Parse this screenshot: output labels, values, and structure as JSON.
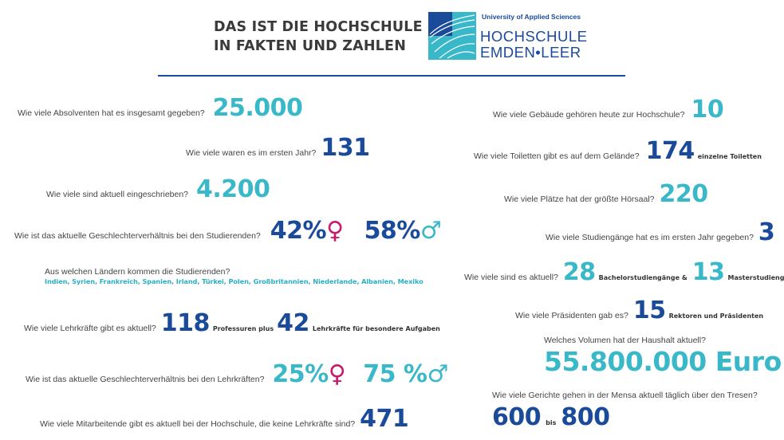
{
  "header": {
    "title_line1": "DAS IST DIE HOCHSCHULE",
    "title_line2": "IN FAKTEN UND ZAHLEN",
    "logo_university": "University of Applied Sciences",
    "logo_line1": "HOCHSCHULE",
    "logo_line2": "EMDEN•LEER"
  },
  "left": {
    "absolventen": {
      "question": "Wie viele Absolventen hat es insgesamt gegeben?",
      "value": "25.000"
    },
    "erstes_jahr": {
      "question": "Wie viele waren es im ersten Jahr?",
      "value": "131"
    },
    "eingeschrieben": {
      "question": "Wie viele sind aktuell eingeschrieben?",
      "value": "4.200"
    },
    "geschlecht_studierende": {
      "question": "Wie ist das aktuelle Geschlechterverhältnis bei den Studierenden?",
      "female": "42%",
      "male": "58%"
    },
    "laender": {
      "question": "Aus welchen Ländern kommen die Studierenden?",
      "list": "Indien, Syrien, Frankreich, Spanien, Irland, Türkei, Polen, Großbritannien, Niederlande, Albanien, Mexiko"
    },
    "lehrkraefte": {
      "question": "Wie viele Lehrkräfte gibt es aktuell?",
      "value1": "118",
      "text1": "Professuren plus",
      "value2": "42",
      "text2": "Lehrkräfte für besondere Aufgaben"
    },
    "geschlecht_lehrkraefte": {
      "question": "Wie ist das aktuelle Geschlechterverhältnis bei den Lehrkräften?",
      "female": "25%",
      "male": "75 %"
    },
    "mitarbeitende": {
      "question": "Wie viele Mitarbeitende gibt es aktuell bei der Hochschule, die keine Lehrkräfte sind?",
      "value": "471"
    }
  },
  "right": {
    "gebaeude": {
      "question": "Wie viele Gebäude gehören heute zur Hochschule?",
      "value": "10"
    },
    "toiletten": {
      "question": "Wie viele Toiletten gibt es auf dem Gelände?",
      "value": "174",
      "text": "einzelne Toiletten"
    },
    "hoersaal": {
      "question": "Wie viele Plätze hat der größte Hörsaal?",
      "value": "220"
    },
    "studiengaenge_erstes_jahr": {
      "question": "Wie viele Studiengänge hat es im ersten Jahr gegeben?",
      "value": "3"
    },
    "studiengaenge_aktuell": {
      "question": "Wie viele sind es aktuell?",
      "value1": "28",
      "text1": "Bachelorstudiengänge &",
      "value2": "13",
      "text2": "Masterstudiengänge"
    },
    "praesidenten": {
      "question": "Wie viele Präsidenten gab es?",
      "value": "15",
      "text": "Rektoren und Präsidenten"
    },
    "haushalt": {
      "question": "Welches Volumen hat der Haushalt aktuell?",
      "value": "55.800.000 Euro"
    },
    "mensa": {
      "question": "Wie viele Gerichte gehen in der Mensa aktuell täglich über den Tresen?",
      "value1": "600",
      "text": "bis",
      "value2": "800"
    }
  },
  "symbols": {
    "female": "♀",
    "male": "♂"
  },
  "colors": {
    "teal": "#38b8c8",
    "blue": "#1a4a9a",
    "pink": "#c8196e"
  }
}
